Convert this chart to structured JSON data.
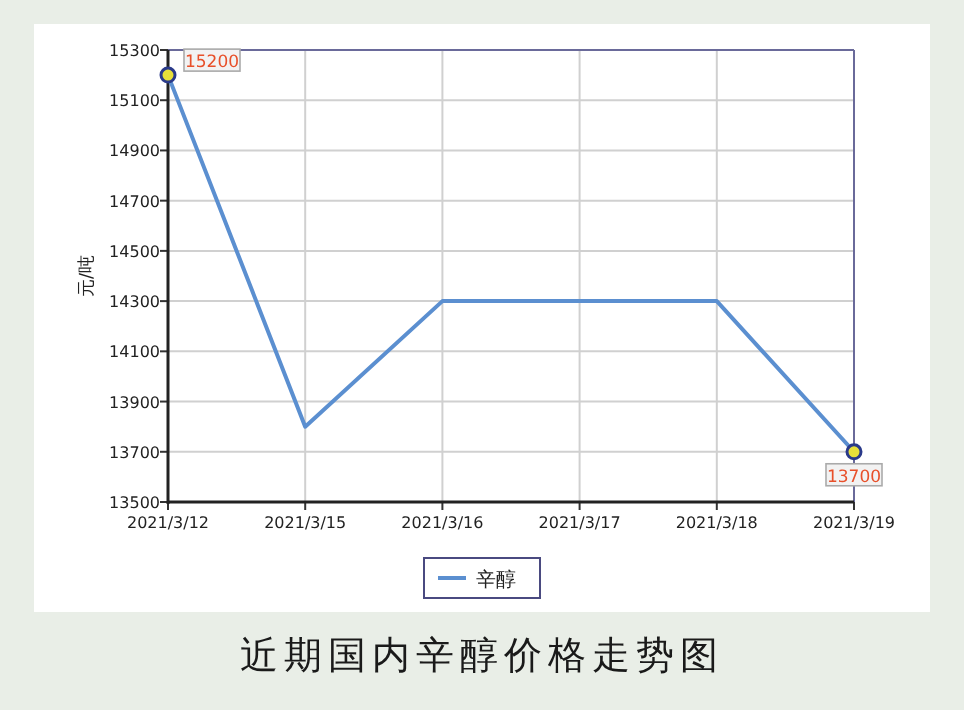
{
  "chart_data": {
    "type": "line",
    "title": "近期国内辛醇价格走势图",
    "ylabel": "元/吨",
    "categories": [
      "2021/3/12",
      "2021/3/15",
      "2021/3/16",
      "2021/3/17",
      "2021/3/18",
      "2021/3/19"
    ],
    "series": [
      {
        "name": "辛醇",
        "color": "#5b8fd0",
        "values": [
          15200,
          13800,
          14300,
          14300,
          14300,
          13700
        ],
        "value_labels": [
          "15200",
          null,
          null,
          null,
          null,
          "13700"
        ]
      }
    ],
    "ylim": [
      13500,
      15300
    ],
    "yticks": [
      13500,
      13700,
      13900,
      14100,
      14300,
      14500,
      14700,
      14900,
      15100,
      15300
    ],
    "grid": true,
    "legend": "bottom",
    "line_style": "solid"
  }
}
